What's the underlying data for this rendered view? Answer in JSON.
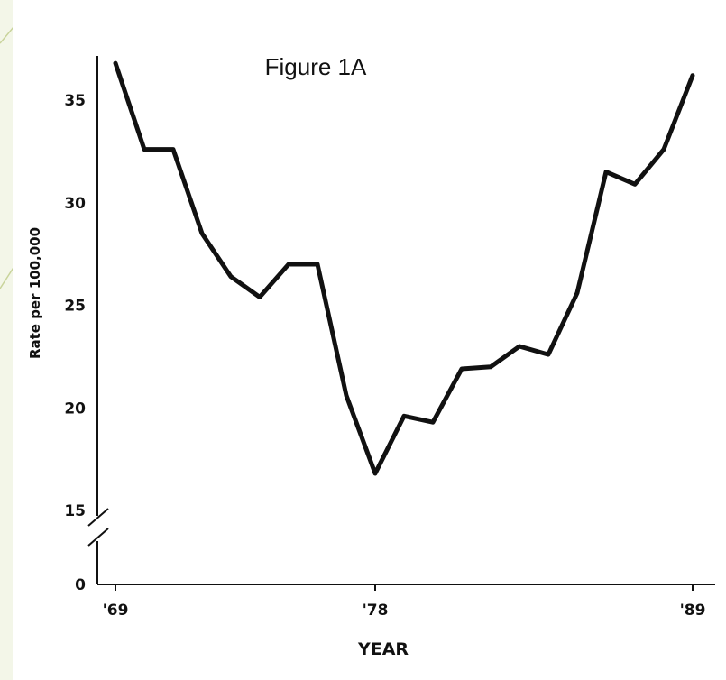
{
  "colors": {
    "background": "#f3f6e8",
    "panel": "#ffffff",
    "line": "#111111",
    "accent": "#c8d39a"
  },
  "chart_data": {
    "type": "line",
    "title": "Figure 1A",
    "xlabel": "YEAR",
    "ylabel": "Rate per 100,000",
    "x": [
      1969,
      1970,
      1971,
      1972,
      1973,
      1974,
      1975,
      1976,
      1977,
      1978,
      1979,
      1980,
      1981,
      1982,
      1983,
      1984,
      1985,
      1986,
      1987,
      1988,
      1989
    ],
    "series": [
      {
        "values": [
          36.8,
          32.6,
          32.6,
          28.5,
          26.4,
          25.4,
          27.0,
          27.0,
          20.6,
          16.8,
          19.6,
          19.3,
          21.9,
          22.0,
          23.0,
          22.6,
          25.6,
          31.5,
          30.9,
          32.6,
          36.2
        ]
      }
    ],
    "xlim": [
      1969,
      1989
    ],
    "ylim": [
      15,
      37
    ],
    "x_ticks": [
      {
        "value": 1969,
        "label": "'69"
      },
      {
        "value": 1978,
        "label": "'78"
      },
      {
        "value": 1989,
        "label": "'89"
      }
    ],
    "y_ticks": [
      {
        "value": 15,
        "label": "15"
      },
      {
        "value": 20,
        "label": "20"
      },
      {
        "value": 25,
        "label": "25"
      },
      {
        "value": 30,
        "label": "30"
      },
      {
        "value": 35,
        "label": "35"
      }
    ],
    "y_break": {
      "low": 0,
      "low_label": "0"
    },
    "grid": false,
    "legend": "none"
  }
}
